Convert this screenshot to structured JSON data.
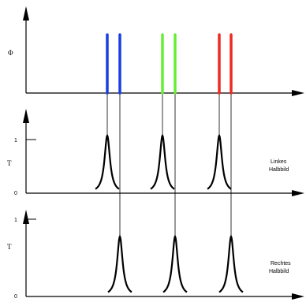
{
  "panels": {
    "top": {
      "ylabel": "Φ"
    },
    "middle": {
      "ylabel": "T",
      "tick_1": "1",
      "tick_0": "0",
      "label_line1": "Linkes",
      "label_line2": "Halbbild"
    },
    "bottom": {
      "ylabel": "T",
      "tick_1": "1",
      "tick_0": "0",
      "label_line1": "Rechtes",
      "label_line2": "Halbbild"
    }
  },
  "colors": {
    "blue": "#1a3fe0",
    "green": "#66ee33",
    "red": "#ee2a22",
    "axis": "#000000",
    "connector": "#000000"
  },
  "spectral_lines": [
    {
      "color": "blue",
      "eye": "left"
    },
    {
      "color": "blue",
      "eye": "right"
    },
    {
      "color": "green",
      "eye": "left"
    },
    {
      "color": "green",
      "eye": "right"
    },
    {
      "color": "red",
      "eye": "left"
    },
    {
      "color": "red",
      "eye": "right"
    }
  ],
  "peak_level": 1
}
